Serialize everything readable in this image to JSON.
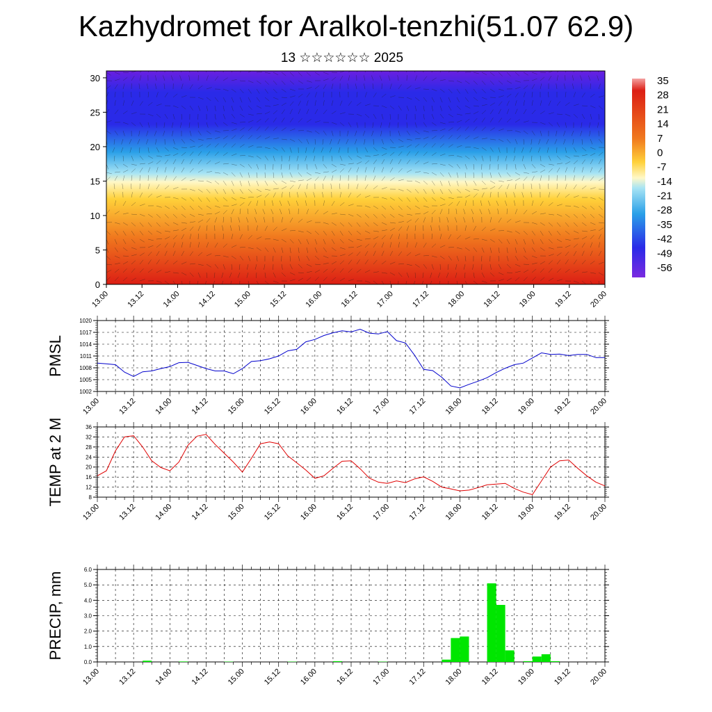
{
  "title": "Kazhydromet for Aralkol-tenzhi(51.07 62.9)",
  "subtitle": "13 ☆☆☆☆☆☆ 2025",
  "chart_data": [
    {
      "type": "heatmap",
      "ylim": [
        0,
        31
      ],
      "y_ticks": [
        "0",
        "5",
        "10",
        "15",
        "20",
        "25",
        "30"
      ],
      "x_ticks": [
        "13.00",
        "13.12",
        "14.00",
        "14.12",
        "15.00",
        "15.12",
        "16.00",
        "16.12",
        "17.00",
        "17.12",
        "18.00",
        "18.12",
        "19.00",
        "19.12",
        "20.00"
      ],
      "colorbar_labels": [
        "35",
        "28",
        "21",
        "14",
        "7",
        "0",
        "-7",
        "-14",
        "-21",
        "-28",
        "-35",
        "-42",
        "-49",
        "-56"
      ],
      "colors": {
        "top": "#6a1fe0",
        "upper": "#2a2ae8",
        "mid_blue": "#2aa0e8",
        "light": "#fff8c8",
        "yellow": "#ffd13a",
        "orange": "#f0781e",
        "red": "#dc1e14"
      }
    },
    {
      "type": "line",
      "ylabel": "PMSL",
      "ylim": [
        1002,
        1020
      ],
      "y_ticks": [
        "1002",
        "1005",
        "1008",
        "1011",
        "1014",
        "1017",
        "1020"
      ],
      "x_ticks": [
        "13.00",
        "13.12",
        "14.00",
        "14.12",
        "15.00",
        "15.12",
        "16.00",
        "16.12",
        "17.00",
        "17.12",
        "18.00",
        "18.12",
        "19.00",
        "19.12",
        "20.00"
      ],
      "x_hours": [
        0,
        3,
        6,
        9,
        12,
        15,
        18,
        21,
        24,
        27,
        30,
        33,
        36,
        39,
        42,
        45,
        48,
        51,
        54,
        57,
        60,
        63,
        66,
        69,
        72,
        75,
        78,
        81,
        84,
        87,
        90,
        93,
        96,
        99,
        102,
        105,
        108,
        111,
        114,
        117,
        120,
        123,
        126,
        129,
        132,
        135,
        138,
        141,
        144,
        147,
        150,
        153,
        156,
        159,
        162,
        165,
        168
      ],
      "values": [
        1009.2,
        1009.0,
        1008.8,
        1006.9,
        1005.8,
        1007.0,
        1007.2,
        1007.8,
        1008.3,
        1009.3,
        1009.4,
        1008.6,
        1007.8,
        1007.2,
        1007.2,
        1006.5,
        1007.8,
        1009.6,
        1009.8,
        1010.3,
        1011.0,
        1012.3,
        1012.7,
        1014.6,
        1015.2,
        1016.2,
        1016.9,
        1017.4,
        1017.1,
        1017.8,
        1016.8,
        1016.6,
        1017.2,
        1014.9,
        1014.3,
        1011.2,
        1007.6,
        1007.3,
        1005.6,
        1003.4,
        1002.9,
        1003.8,
        1004.6,
        1005.5,
        1006.8,
        1007.9,
        1008.8,
        1009.2,
        1010.5,
        1011.8,
        1011.4,
        1011.5,
        1011.1,
        1011.4,
        1011.4,
        1010.6,
        1010.6
      ],
      "color": "#0000cc"
    },
    {
      "type": "line",
      "ylabel": "TEMP at 2 M",
      "ylim": [
        8,
        36
      ],
      "y_ticks": [
        "8",
        "12",
        "16",
        "20",
        "24",
        "28",
        "32",
        "36"
      ],
      "x_ticks": [
        "13.00",
        "13.12",
        "14.00",
        "14.12",
        "15.00",
        "15.12",
        "16.00",
        "16.12",
        "17.00",
        "17.12",
        "18.00",
        "18.12",
        "19.00",
        "19.12",
        "20.00"
      ],
      "x_hours": [
        0,
        3,
        6,
        9,
        12,
        15,
        18,
        21,
        24,
        27,
        30,
        33,
        36,
        39,
        42,
        45,
        48,
        51,
        54,
        57,
        60,
        63,
        66,
        69,
        72,
        75,
        78,
        81,
        84,
        87,
        90,
        93,
        96,
        99,
        102,
        105,
        108,
        111,
        114,
        117,
        120,
        123,
        126,
        129,
        132,
        135,
        138,
        141,
        144,
        147,
        150,
        153,
        156,
        159,
        162,
        165,
        168
      ],
      "values": [
        16.5,
        18.5,
        26.5,
        32.0,
        32.5,
        28.0,
        22.5,
        19.8,
        18.5,
        22.0,
        28.7,
        32.3,
        33.0,
        29.0,
        25.5,
        22.0,
        18.0,
        23.5,
        29.3,
        30.0,
        29.3,
        24.5,
        21.7,
        18.8,
        15.5,
        16.5,
        19.5,
        22.3,
        22.5,
        19.3,
        15.6,
        14.0,
        13.5,
        14.5,
        13.8,
        15.3,
        16.1,
        14.3,
        12.0,
        11.3,
        10.5,
        10.8,
        11.8,
        12.9,
        13.2,
        13.5,
        11.5,
        10.0,
        9.0,
        14.5,
        20.0,
        22.5,
        22.8,
        19.5,
        16.5,
        14.0,
        12.5
      ],
      "color": "#e00000"
    },
    {
      "type": "bar",
      "ylabel": "PRECIP, mm",
      "ylim": [
        0,
        6
      ],
      "y_ticks": [
        "0.0",
        "1.0",
        "2.0",
        "3.0",
        "4.0",
        "5.0",
        "6.0"
      ],
      "x_ticks": [
        "13.00",
        "13.12",
        "14.00",
        "14.12",
        "15.00",
        "15.12",
        "16.00",
        "16.12",
        "17.00",
        "17.12",
        "18.00",
        "18.12",
        "19.00",
        "19.12",
        "20.00"
      ],
      "x_hours": [
        0,
        3,
        6,
        9,
        12,
        15,
        18,
        21,
        24,
        27,
        30,
        33,
        36,
        39,
        42,
        45,
        48,
        51,
        54,
        57,
        60,
        63,
        66,
        69,
        72,
        75,
        78,
        81,
        84,
        87,
        90,
        93,
        96,
        99,
        102,
        105,
        108,
        111,
        114,
        117,
        120,
        123,
        126,
        129,
        132,
        135,
        138,
        141,
        144,
        147,
        150,
        153,
        156,
        159,
        162,
        165
      ],
      "values": [
        0,
        0,
        0,
        0,
        0,
        0.08,
        0,
        0,
        0,
        0.03,
        0,
        0,
        0,
        0,
        0.02,
        0,
        0,
        0,
        0,
        0,
        0,
        0.02,
        0,
        0,
        0,
        0,
        0.05,
        0,
        0,
        0,
        0,
        0.02,
        0,
        0,
        0,
        0,
        0,
        0,
        0.15,
        1.55,
        1.65,
        0,
        0,
        5.1,
        3.7,
        0.75,
        0,
        0.05,
        0.35,
        0.5,
        0.05,
        0,
        0,
        0,
        0,
        0
      ],
      "color": "#00e600"
    }
  ]
}
